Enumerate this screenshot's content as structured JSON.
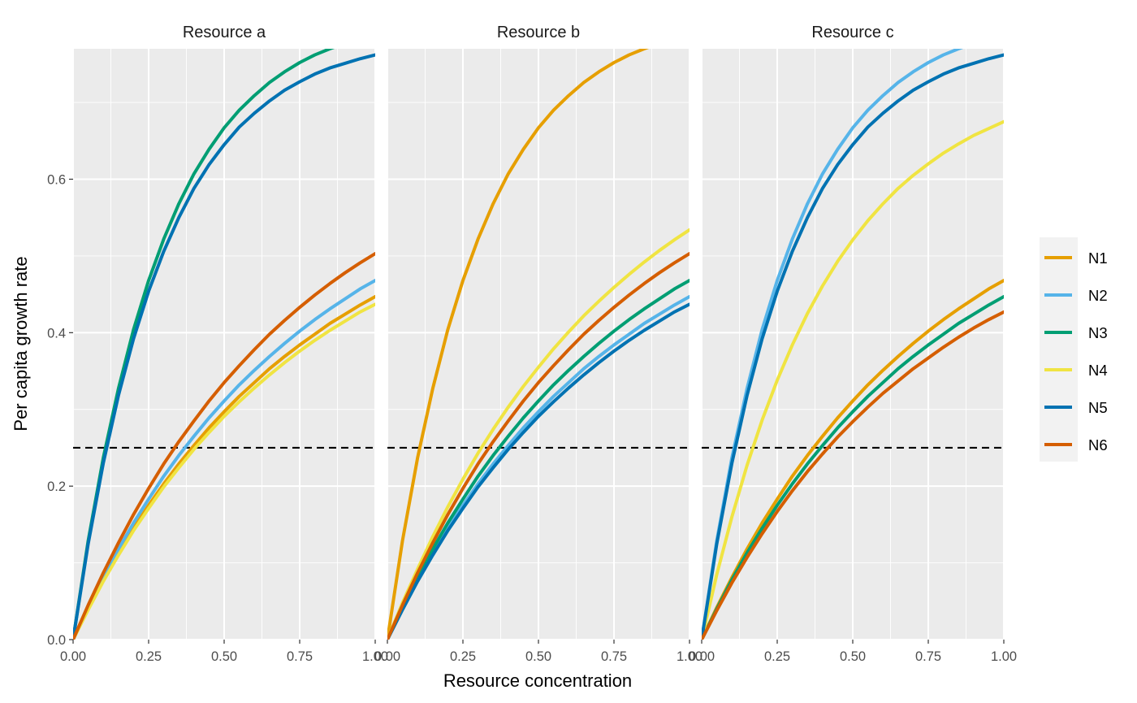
{
  "chart_data": {
    "type": "line",
    "xlabel": "Resource concentration",
    "ylabel": "Per capita growth rate",
    "xlim": [
      0,
      1
    ],
    "ylim": [
      0,
      0.77
    ],
    "x_ticks": [
      0,
      0.25,
      0.5,
      0.75,
      1
    ],
    "x_tick_labels": [
      "0.00",
      "0.25",
      "0.50",
      "0.75",
      "1.00"
    ],
    "y_ticks": [
      0,
      0.2,
      0.4,
      0.6
    ],
    "y_tick_labels": [
      "0.0",
      "0.2",
      "0.4",
      "0.6"
    ],
    "hline": 0.25,
    "grid": true,
    "legend_position": "right",
    "legend": [
      {
        "name": "N1",
        "color": "#E69F00"
      },
      {
        "name": "N2",
        "color": "#56B4E9"
      },
      {
        "name": "N3",
        "color": "#009E73"
      },
      {
        "name": "N4",
        "color": "#F0E442"
      },
      {
        "name": "N5",
        "color": "#0072B2"
      },
      {
        "name": "N6",
        "color": "#D55E00"
      }
    ],
    "x": [
      0,
      0.05,
      0.1,
      0.15,
      0.2,
      0.25,
      0.3,
      0.35,
      0.4,
      0.45,
      0.5,
      0.55,
      0.6,
      0.65,
      0.7,
      0.75,
      0.8,
      0.85,
      0.9,
      0.95,
      1
    ],
    "panels": [
      {
        "title": "Resource a",
        "series": [
          {
            "name": "N1",
            "values": [
              0,
              0.04,
              0.078,
              0.113,
              0.145,
              0.175,
              0.203,
              0.229,
              0.253,
              0.276,
              0.297,
              0.317,
              0.335,
              0.353,
              0.369,
              0.384,
              0.398,
              0.412,
              0.424,
              0.436,
              0.447
            ]
          },
          {
            "name": "N2",
            "values": [
              0,
              0.042,
              0.081,
              0.118,
              0.152,
              0.183,
              0.213,
              0.24,
              0.265,
              0.289,
              0.311,
              0.332,
              0.351,
              0.369,
              0.386,
              0.402,
              0.417,
              0.431,
              0.444,
              0.457,
              0.468
            ]
          },
          {
            "name": "N3",
            "values": [
              0,
              0.129,
              0.237,
              0.327,
              0.404,
              0.468,
              0.522,
              0.568,
              0.607,
              0.639,
              0.667,
              0.69,
              0.709,
              0.726,
              0.74,
              0.752,
              0.762,
              0.77,
              0.777,
              0.783,
              0.788
            ]
          },
          {
            "name": "N4",
            "values": [
              0,
              0.039,
              0.076,
              0.11,
              0.142,
              0.171,
              0.199,
              0.224,
              0.248,
              0.27,
              0.291,
              0.31,
              0.328,
              0.345,
              0.361,
              0.376,
              0.39,
              0.403,
              0.415,
              0.427,
              0.437
            ]
          },
          {
            "name": "N5",
            "values": [
              0,
              0.125,
              0.23,
              0.318,
              0.392,
              0.454,
              0.506,
              0.55,
              0.588,
              0.619,
              0.645,
              0.668,
              0.686,
              0.702,
              0.716,
              0.727,
              0.737,
              0.745,
              0.751,
              0.757,
              0.762
            ]
          },
          {
            "name": "N6",
            "values": [
              0,
              0.045,
              0.087,
              0.126,
              0.163,
              0.197,
              0.229,
              0.258,
              0.285,
              0.311,
              0.335,
              0.357,
              0.378,
              0.398,
              0.416,
              0.433,
              0.449,
              0.464,
              0.478,
              0.491,
              0.503
            ]
          }
        ]
      },
      {
        "title": "Resource b",
        "series": [
          {
            "name": "N1",
            "values": [
              0,
              0.129,
              0.237,
              0.327,
              0.404,
              0.468,
              0.522,
              0.568,
              0.607,
              0.639,
              0.667,
              0.69,
              0.709,
              0.726,
              0.74,
              0.752,
              0.762,
              0.77,
              0.777,
              0.783,
              0.788
            ]
          },
          {
            "name": "N2",
            "values": [
              0,
              0.04,
              0.078,
              0.113,
              0.145,
              0.175,
              0.203,
              0.229,
              0.253,
              0.276,
              0.297,
              0.317,
              0.335,
              0.353,
              0.369,
              0.384,
              0.398,
              0.412,
              0.424,
              0.436,
              0.447
            ]
          },
          {
            "name": "N3",
            "values": [
              0,
              0.042,
              0.081,
              0.118,
              0.152,
              0.183,
              0.213,
              0.24,
              0.265,
              0.289,
              0.311,
              0.332,
              0.351,
              0.369,
              0.386,
              0.402,
              0.417,
              0.431,
              0.444,
              0.457,
              0.468
            ]
          },
          {
            "name": "N4",
            "values": [
              0,
              0.048,
              0.092,
              0.134,
              0.173,
              0.209,
              0.243,
              0.274,
              0.303,
              0.33,
              0.355,
              0.379,
              0.401,
              0.422,
              0.441,
              0.459,
              0.476,
              0.492,
              0.507,
              0.521,
              0.534
            ]
          },
          {
            "name": "N5",
            "values": [
              0,
              0.039,
              0.076,
              0.11,
              0.142,
              0.171,
              0.199,
              0.224,
              0.248,
              0.27,
              0.291,
              0.31,
              0.328,
              0.345,
              0.361,
              0.376,
              0.39,
              0.403,
              0.415,
              0.427,
              0.437
            ]
          },
          {
            "name": "N6",
            "values": [
              0,
              0.045,
              0.087,
              0.126,
              0.163,
              0.197,
              0.229,
              0.258,
              0.285,
              0.311,
              0.335,
              0.357,
              0.378,
              0.398,
              0.416,
              0.433,
              0.449,
              0.464,
              0.478,
              0.491,
              0.503
            ]
          }
        ]
      },
      {
        "title": "Resource c",
        "series": [
          {
            "name": "N1",
            "values": [
              0,
              0.042,
              0.081,
              0.118,
              0.152,
              0.183,
              0.213,
              0.24,
              0.265,
              0.289,
              0.311,
              0.332,
              0.351,
              0.369,
              0.386,
              0.402,
              0.417,
              0.431,
              0.444,
              0.457,
              0.468
            ]
          },
          {
            "name": "N2",
            "values": [
              0,
              0.129,
              0.237,
              0.327,
              0.404,
              0.468,
              0.522,
              0.568,
              0.607,
              0.639,
              0.667,
              0.69,
              0.709,
              0.726,
              0.74,
              0.752,
              0.762,
              0.77,
              0.777,
              0.783,
              0.788
            ]
          },
          {
            "name": "N3",
            "values": [
              0,
              0.04,
              0.078,
              0.113,
              0.145,
              0.175,
              0.203,
              0.229,
              0.253,
              0.276,
              0.297,
              0.317,
              0.335,
              0.353,
              0.369,
              0.384,
              0.398,
              0.412,
              0.424,
              0.436,
              0.447
            ]
          },
          {
            "name": "N4",
            "values": [
              0,
              0.085,
              0.16,
              0.227,
              0.286,
              0.338,
              0.384,
              0.425,
              0.461,
              0.493,
              0.521,
              0.546,
              0.568,
              0.588,
              0.605,
              0.62,
              0.634,
              0.646,
              0.657,
              0.666,
              0.675
            ]
          },
          {
            "name": "N5",
            "values": [
              0,
              0.125,
              0.23,
              0.318,
              0.392,
              0.454,
              0.506,
              0.55,
              0.588,
              0.619,
              0.645,
              0.668,
              0.686,
              0.702,
              0.716,
              0.727,
              0.737,
              0.745,
              0.751,
              0.757,
              0.762
            ]
          },
          {
            "name": "N6",
            "values": [
              0,
              0.038,
              0.074,
              0.107,
              0.138,
              0.167,
              0.194,
              0.219,
              0.242,
              0.264,
              0.284,
              0.303,
              0.321,
              0.337,
              0.353,
              0.367,
              0.381,
              0.394,
              0.406,
              0.417,
              0.427
            ]
          }
        ]
      }
    ]
  }
}
